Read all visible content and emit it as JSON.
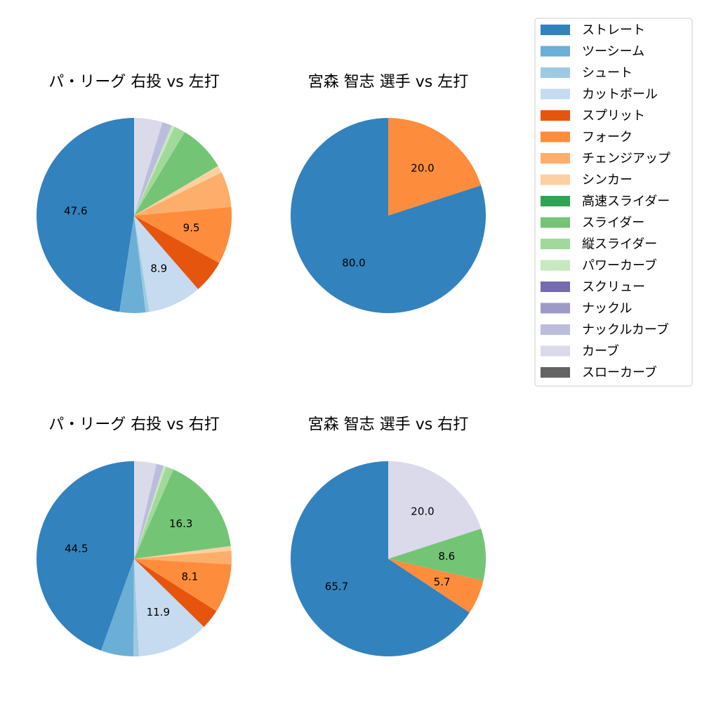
{
  "legend": {
    "entries": [
      {
        "label": "ストレート",
        "color": "#3182bd"
      },
      {
        "label": "ツーシーム",
        "color": "#6baed6"
      },
      {
        "label": "シュート",
        "color": "#9ecae1"
      },
      {
        "label": "カットボール",
        "color": "#c6dbef"
      },
      {
        "label": "スプリット",
        "color": "#e6550d"
      },
      {
        "label": "フォーク",
        "color": "#fd8d3c"
      },
      {
        "label": "チェンジアップ",
        "color": "#fdae6b"
      },
      {
        "label": "シンカー",
        "color": "#fdd0a2"
      },
      {
        "label": "高速スライダー",
        "color": "#31a354"
      },
      {
        "label": "スライダー",
        "color": "#74c476"
      },
      {
        "label": "縦スライダー",
        "color": "#a1d99b"
      },
      {
        "label": "パワーカーブ",
        "color": "#c7e9c0"
      },
      {
        "label": "スクリュー",
        "color": "#756bb1"
      },
      {
        "label": "ナックル",
        "color": "#9e9ac8"
      },
      {
        "label": "ナックルカーブ",
        "color": "#bcbddc"
      },
      {
        "label": "カーブ",
        "color": "#dadaeb"
      },
      {
        "label": "スローカーブ",
        "color": "#636363"
      }
    ]
  },
  "chart_data": [
    {
      "type": "pie",
      "title": "パ・リーグ 右投 vs 左打",
      "slices": [
        {
          "pitch": "ストレート",
          "value": 47.6,
          "label": "47.6"
        },
        {
          "pitch": "ツーシーム",
          "value": 4.3,
          "label": ""
        },
        {
          "pitch": "シュート",
          "value": 0.6,
          "label": ""
        },
        {
          "pitch": "カットボール",
          "value": 8.9,
          "label": "8.9"
        },
        {
          "pitch": "スプリット",
          "value": 5.5,
          "label": ""
        },
        {
          "pitch": "フォーク",
          "value": 9.5,
          "label": "9.5"
        },
        {
          "pitch": "チェンジアップ",
          "value": 5.9,
          "label": ""
        },
        {
          "pitch": "シンカー",
          "value": 1.2,
          "label": ""
        },
        {
          "pitch": "スライダー",
          "value": 7.8,
          "label": ""
        },
        {
          "pitch": "縦スライダー",
          "value": 1.9,
          "label": ""
        },
        {
          "pitch": "パワーカーブ",
          "value": 0.5,
          "label": ""
        },
        {
          "pitch": "ナックルカーブ",
          "value": 1.6,
          "label": ""
        },
        {
          "pitch": "カーブ",
          "value": 4.7,
          "label": ""
        }
      ]
    },
    {
      "type": "pie",
      "title": "宮森 智志 選手 vs 左打",
      "slices": [
        {
          "pitch": "ストレート",
          "value": 80.0,
          "label": "80.0"
        },
        {
          "pitch": "フォーク",
          "value": 20.0,
          "label": "20.0"
        }
      ]
    },
    {
      "type": "pie",
      "title": "パ・リーグ 右投 vs 右打",
      "slices": [
        {
          "pitch": "ストレート",
          "value": 44.5,
          "label": "44.5"
        },
        {
          "pitch": "ツーシーム",
          "value": 5.4,
          "label": ""
        },
        {
          "pitch": "シュート",
          "value": 0.9,
          "label": ""
        },
        {
          "pitch": "カットボール",
          "value": 11.9,
          "label": "11.9"
        },
        {
          "pitch": "スプリット",
          "value": 3.3,
          "label": ""
        },
        {
          "pitch": "フォーク",
          "value": 8.1,
          "label": "8.1"
        },
        {
          "pitch": "チェンジアップ",
          "value": 2.2,
          "label": ""
        },
        {
          "pitch": "シンカー",
          "value": 0.8,
          "label": ""
        },
        {
          "pitch": "スライダー",
          "value": 16.3,
          "label": "16.3"
        },
        {
          "pitch": "縦スライダー",
          "value": 1.3,
          "label": ""
        },
        {
          "pitch": "パワーカーブ",
          "value": 0.4,
          "label": ""
        },
        {
          "pitch": "ナックルカーブ",
          "value": 1.2,
          "label": ""
        },
        {
          "pitch": "カーブ",
          "value": 3.7,
          "label": ""
        }
      ]
    },
    {
      "type": "pie",
      "title": "宮森 智志 選手 vs 右打",
      "slices": [
        {
          "pitch": "ストレート",
          "value": 65.7,
          "label": "65.7"
        },
        {
          "pitch": "フォーク",
          "value": 5.7,
          "label": "5.7"
        },
        {
          "pitch": "スライダー",
          "value": 8.6,
          "label": "8.6"
        },
        {
          "pitch": "カーブ",
          "value": 20.0,
          "label": "20.0"
        }
      ]
    }
  ]
}
